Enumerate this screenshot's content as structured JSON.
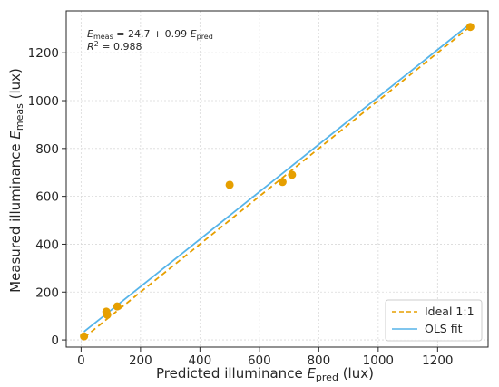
{
  "chart_data": {
    "type": "scatter",
    "xlabel": {
      "main": "Predicted illuminance ",
      "var": "E",
      "sub": "pred",
      "unit": " (lux)"
    },
    "ylabel": {
      "main": "Measured illuminance ",
      "var": "E",
      "sub": "meas",
      "unit": " (lux)"
    },
    "xlim": [
      -50,
      1370
    ],
    "ylim": [
      -30,
      1375
    ],
    "xticks": [
      0,
      200,
      400,
      600,
      800,
      1000,
      1200
    ],
    "yticks": [
      0,
      200,
      400,
      600,
      800,
      1000,
      1200
    ],
    "grid": true,
    "points": {
      "color": "#E69F00",
      "x": [
        10,
        85,
        88,
        122,
        500,
        678,
        710,
        1310
      ],
      "y": [
        15,
        118,
        105,
        140,
        648,
        660,
        690,
        1308
      ]
    },
    "ideal_line": {
      "name": "Ideal 1:1",
      "color": "#E69F00",
      "style": "dashed",
      "x": [
        10,
        1310
      ],
      "y": [
        10,
        1310
      ]
    },
    "ols_fit": {
      "name": "OLS fit",
      "color": "#56B4E9",
      "intercept": 24.7,
      "slope": 0.99,
      "x_range": [
        10,
        1310
      ]
    },
    "annotation": {
      "eq_prefix": "E",
      "eq_prefix_sub": "meas",
      "eq_mid": " = 24.7 + 0.99 ",
      "eq_var": "E",
      "eq_var_sub": "pred",
      "r2_var": "R",
      "r2_sup": "2",
      "r2_rest": " = 0.988"
    },
    "legend_position": "lower-right"
  }
}
